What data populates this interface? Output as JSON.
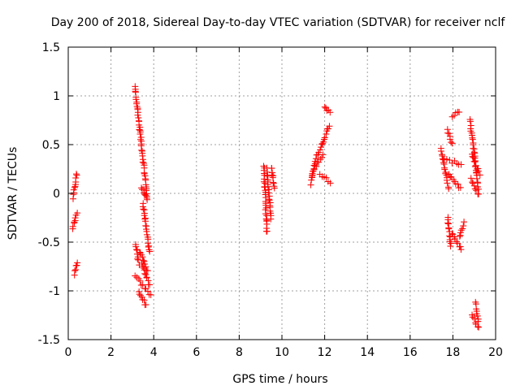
{
  "chart_data": {
    "type": "scatter",
    "title": "Day 200 of 2018, Sidereal Day-to-day VTEC variation (SDTVAR) for receiver nclf",
    "xlabel": "GPS time / hours",
    "ylabel": "SDTVAR / TECUs",
    "xlim": [
      0,
      20
    ],
    "ylim": [
      -1.5,
      1.5
    ],
    "x_ticks": [
      0,
      2,
      4,
      6,
      8,
      10,
      12,
      14,
      16,
      18,
      20
    ],
    "x_tick_labels": [
      "0",
      "2",
      "4",
      "6",
      "8",
      "10",
      "12",
      "14",
      "16",
      "18",
      "20"
    ],
    "y_ticks": [
      -1.5,
      -1,
      -0.5,
      0,
      0.5,
      1,
      1.5
    ],
    "y_tick_labels": [
      "-1.5",
      "-1",
      "-0.5",
      "0",
      "0.5",
      "1",
      "1.5"
    ],
    "grid": true,
    "marker": "+",
    "color": "#ff0000",
    "series": [
      {
        "name": "SDTVAR",
        "segments": [
          {
            "x": [
              0.22,
              0.4
            ],
            "y": [
              -0.05,
              0.2
            ]
          },
          {
            "x": [
              0.2,
              0.4
            ],
            "y": [
              -0.36,
              -0.2
            ]
          },
          {
            "x": [
              0.28,
              0.42
            ],
            "y": [
              -0.83,
              -0.7
            ]
          },
          {
            "x": [
              3.12,
              3.35
            ],
            "y": [
              1.1,
              0.65
            ]
          },
          {
            "x": [
              3.35,
              3.7
            ],
            "y": [
              0.65,
              -0.05
            ]
          },
          {
            "x": [
              3.4,
              3.7
            ],
            "y": [
              0.05,
              -0.05
            ]
          },
          {
            "x": [
              3.5,
              3.8
            ],
            "y": [
              -0.1,
              -0.6
            ]
          },
          {
            "x": [
              3.15,
              3.3
            ],
            "y": [
              -0.52,
              -0.72
            ]
          },
          {
            "x": [
              3.35,
              3.7
            ],
            "y": [
              -0.6,
              -0.8
            ]
          },
          {
            "x": [
              3.15,
              3.85
            ],
            "y": [
              -0.85,
              -1.05
            ]
          },
          {
            "x": [
              3.3,
              3.65
            ],
            "y": [
              -1.0,
              -1.15
            ]
          },
          {
            "x": [
              3.45,
              3.8
            ],
            "y": [
              -0.72,
              -0.95
            ]
          },
          {
            "x": [
              9.15,
              9.3
            ],
            "y": [
              0.28,
              -0.4
            ]
          },
          {
            "x": [
              9.3,
              9.5
            ],
            "y": [
              0.25,
              -0.25
            ]
          },
          {
            "x": [
              9.5,
              9.65
            ],
            "y": [
              0.27,
              0.05
            ]
          },
          {
            "x": [
              11.35,
              11.6
            ],
            "y": [
              0.1,
              0.38
            ]
          },
          {
            "x": [
              11.4,
              11.9
            ],
            "y": [
              0.2,
              0.4
            ]
          },
          {
            "x": [
              11.7,
              12.2
            ],
            "y": [
              0.4,
              0.7
            ]
          },
          {
            "x": [
              11.8,
              12.25
            ],
            "y": [
              0.2,
              0.12
            ]
          },
          {
            "x": [
              12.0,
              12.25
            ],
            "y": [
              0.9,
              0.82
            ]
          },
          {
            "x": [
              17.45,
              17.8
            ],
            "y": [
              0.45,
              0.05
            ]
          },
          {
            "x": [
              17.5,
              18.4
            ],
            "y": [
              0.35,
              0.3
            ]
          },
          {
            "x": [
              17.8,
              18.35
            ],
            "y": [
              0.2,
              0.05
            ]
          },
          {
            "x": [
              17.75,
              17.95
            ],
            "y": [
              0.65,
              0.5
            ]
          },
          {
            "x": [
              17.95,
              18.3
            ],
            "y": [
              0.8,
              0.84
            ]
          },
          {
            "x": [
              17.75,
              17.9
            ],
            "y": [
              -0.25,
              -0.55
            ]
          },
          {
            "x": [
              17.95,
              18.4
            ],
            "y": [
              -0.4,
              -0.58
            ]
          },
          {
            "x": [
              18.3,
              18.5
            ],
            "y": [
              -0.45,
              -0.3
            ]
          },
          {
            "x": [
              18.8,
              19.2
            ],
            "y": [
              0.75,
              0.05
            ]
          },
          {
            "x": [
              18.85,
              19.2
            ],
            "y": [
              0.15,
              -0.02
            ]
          },
          {
            "x": [
              18.9,
              19.25
            ],
            "y": [
              0.4,
              0.2
            ]
          },
          {
            "x": [
              18.9,
              19.2
            ],
            "y": [
              -1.25,
              -1.38
            ]
          },
          {
            "x": [
              19.05,
              19.2
            ],
            "y": [
              -1.12,
              -1.3
            ]
          }
        ]
      }
    ]
  }
}
